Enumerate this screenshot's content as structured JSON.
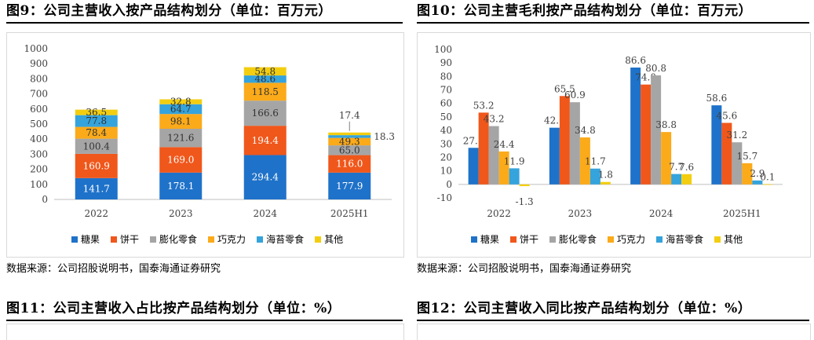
{
  "figures": {
    "fig9": {
      "title": "图9：公司主营收入按产品结构划分（单位：百万元）",
      "source": "数据来源：公司招股说明书，国泰海通证券研究"
    },
    "fig10": {
      "title": "图10：公司主营毛利按产品结构划分（单位：百万元）",
      "source": "数据来源：公司招股说明书，国泰海通证券研究"
    },
    "fig11": {
      "title": "图11：公司主营收入占比按产品结构划分（单位：%）"
    },
    "fig12": {
      "title": "图12：公司主营收入同比按产品结构划分（单位：%）"
    }
  },
  "colors": {
    "糖果": "#1f72c9",
    "饼干": "#f0571b",
    "膨化零食": "#a5a5a5",
    "巧克力": "#fbaa1a",
    "海苔零食": "#35a3dc",
    "其他": "#f3ce10"
  },
  "chart_data": [
    {
      "type": "bar",
      "stacked": true,
      "categories": [
        "2022",
        "2023",
        "2024",
        "2025H1"
      ],
      "series": [
        {
          "name": "糖果",
          "values": [
            141.7,
            178.1,
            294.4,
            177.9
          ]
        },
        {
          "name": "饼干",
          "values": [
            160.9,
            169.0,
            194.4,
            116.0
          ]
        },
        {
          "name": "膨化零食",
          "values": [
            100.4,
            121.6,
            166.6,
            65.0
          ]
        },
        {
          "name": "巧克力",
          "values": [
            78.4,
            98.1,
            118.5,
            49.3
          ]
        },
        {
          "name": "海苔零食",
          "values": [
            77.8,
            64.7,
            48.6,
            18.3
          ]
        },
        {
          "name": "其他",
          "values": [
            36.5,
            32.8,
            54.8,
            17.4
          ]
        }
      ],
      "labels": [
        [
          "141.7",
          "178.1",
          "294.4",
          "177.9"
        ],
        [
          "160.9",
          "169.0",
          "194.4",
          "116.0"
        ],
        [
          "100.4",
          "121.6",
          "166.6",
          "65.0"
        ],
        [
          "78.4",
          "98.1",
          "118.5",
          "49.3"
        ],
        [
          "77.8",
          "64.7",
          "48.6",
          "18.3"
        ],
        [
          "36.5",
          "32.8",
          "54.8",
          "17.4"
        ]
      ],
      "ylim": [
        0,
        1000
      ],
      "yticks": [
        "0",
        "100",
        "200",
        "300",
        "400",
        "500",
        "600",
        "700",
        "800",
        "900",
        "1000"
      ],
      "grid": false,
      "legend": "bottom"
    },
    {
      "type": "bar",
      "stacked": false,
      "categories": [
        "2022",
        "2023",
        "2024",
        "2025H1"
      ],
      "series": [
        {
          "name": "糖果",
          "values": [
            27.1,
            42.0,
            86.6,
            58.6
          ]
        },
        {
          "name": "饼干",
          "values": [
            53.2,
            65.5,
            74.0,
            45.6
          ]
        },
        {
          "name": "膨化零食",
          "values": [
            43.2,
            60.9,
            80.8,
            31.2
          ]
        },
        {
          "name": "巧克力",
          "values": [
            24.4,
            34.8,
            38.8,
            15.7
          ]
        },
        {
          "name": "海苔零食",
          "values": [
            11.9,
            11.7,
            7.7,
            2.9
          ]
        },
        {
          "name": "其他",
          "values": [
            -1.3,
            1.8,
            7.6,
            0.1
          ]
        }
      ],
      "labels": [
        [
          "27.1",
          "42.0",
          "86.6",
          "58.6"
        ],
        [
          "53.2",
          "65.5",
          "74.0",
          "45.6"
        ],
        [
          "43.2",
          "60.9",
          "80.8",
          "31.2"
        ],
        [
          "24.4",
          "34.8",
          "38.8",
          "15.7"
        ],
        [
          "11.9",
          "11.7",
          "7.7",
          "2.9"
        ],
        [
          "-1.3",
          "1.8",
          "7.6",
          "0.1"
        ]
      ],
      "ylim": [
        -10,
        100
      ],
      "yticks": [
        "-10",
        "0",
        "10",
        "20",
        "30",
        "40",
        "50",
        "60",
        "70",
        "80",
        "90",
        "100"
      ],
      "grid": false,
      "legend": "bottom"
    }
  ]
}
